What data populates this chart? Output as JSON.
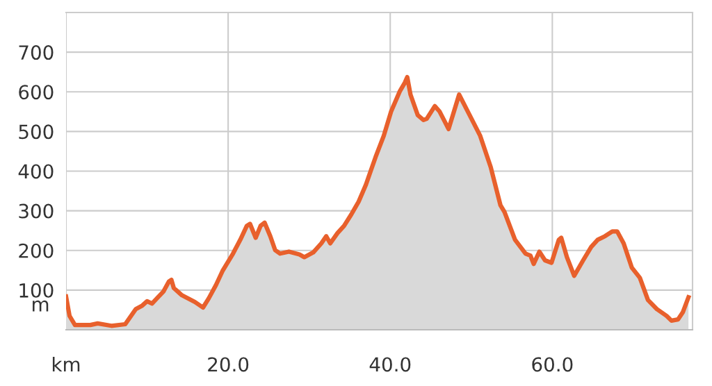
{
  "chart_data": {
    "type": "area",
    "ylabel": "m",
    "x": [
      0,
      0.43,
      1.1,
      3.0,
      3.9,
      5.6,
      7.3,
      8.6,
      9.4,
      10.0,
      10.6,
      11.2,
      12.0,
      12.7,
      13.0,
      13.3,
      14.3,
      15.9,
      16.9,
      17.6,
      18.5,
      19.3,
      20.6,
      21.5,
      22.3,
      22.7,
      23.4,
      24.0,
      24.5,
      25.2,
      25.8,
      26.4,
      27.5,
      28.8,
      29.4,
      30.5,
      31.5,
      32.1,
      32.6,
      33.5,
      34.3,
      35.2,
      36.1,
      37.0,
      38.2,
      39.2,
      40.1,
      41.2,
      41.8,
      42.1,
      42.5,
      43.4,
      44.1,
      44.5,
      45.5,
      46.1,
      47.2,
      48.5,
      49.8,
      51.1,
      52.4,
      53.6,
      54.1,
      55.4,
      56.7,
      57.3,
      57.7,
      58.4,
      59.1,
      59.9,
      60.8,
      61.1,
      61.8,
      62.7,
      63.8,
      64.8,
      65.6,
      66.5,
      67.4,
      68.0,
      68.8,
      69.8,
      70.8,
      71.8,
      72.9,
      74.1,
      74.7,
      75.5,
      76.1,
      76.8
    ],
    "series": [
      {
        "color": "#e8602c",
        "values": [
          84,
          35,
          12,
          12,
          16,
          10,
          14,
          52,
          61,
          72,
          66,
          79,
          96,
          122,
          126,
          105,
          87,
          70,
          56,
          79,
          113,
          148,
          192,
          227,
          262,
          267,
          232,
          262,
          270,
          236,
          201,
          192,
          197,
          190,
          183,
          195,
          218,
          236,
          218,
          244,
          262,
          291,
          323,
          366,
          436,
          489,
          550,
          602,
          623,
          637,
          593,
          541,
          529,
          532,
          564,
          550,
          506,
          593,
          541,
          489,
          410,
          314,
          297,
          227,
          192,
          187,
          166,
          197,
          175,
          169,
          227,
          232,
          183,
          136,
          175,
          209,
          227,
          236,
          248,
          248,
          218,
          157,
          131,
          75,
          52,
          35,
          23,
          26,
          44,
          82
        ]
      }
    ],
    "xlim": [
      0,
      77.3
    ],
    "xticks": [
      {
        "value": 0,
        "label": "km"
      },
      {
        "value": 20,
        "label": "20.0"
      },
      {
        "value": 40,
        "label": "40.0"
      },
      {
        "value": 60,
        "label": "60.0"
      }
    ],
    "ylim": [
      0,
      800
    ],
    "yticks": [
      100,
      200,
      300,
      400,
      500,
      600,
      700
    ],
    "grid": true
  }
}
